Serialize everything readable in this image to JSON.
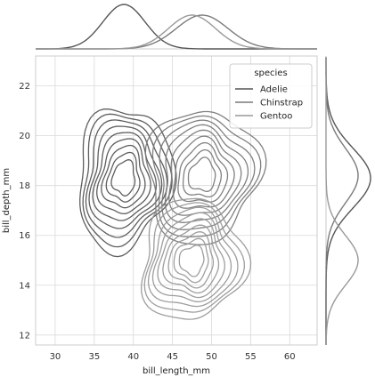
{
  "chart_data": {
    "type": "kde_joint",
    "x": {
      "label": "bill_length_mm",
      "range": [
        27.5,
        63.5
      ],
      "ticks": [
        30,
        35,
        40,
        45,
        50,
        55,
        60
      ]
    },
    "y": {
      "label": "bill_depth_mm",
      "range": [
        11.6,
        23.2
      ],
      "ticks": [
        12,
        14,
        16,
        18,
        20,
        22
      ]
    },
    "grid": true,
    "legend": {
      "title": "species",
      "placement": "top-right",
      "entries": [
        {
          "name": "Adelie",
          "color": "#555555"
        },
        {
          "name": "Chinstrap",
          "color": "#7a7a7a"
        },
        {
          "name": "Gentoo",
          "color": "#999999"
        }
      ]
    },
    "series": [
      {
        "name": "Adelie",
        "color": "#555555",
        "center": {
          "x": 38.8,
          "y": 18.3
        },
        "spread": {
          "x": 2.7,
          "y": 1.2
        }
      },
      {
        "name": "Chinstrap",
        "color": "#7a7a7a",
        "center": {
          "x": 48.8,
          "y": 18.4
        },
        "spread": {
          "x": 3.3,
          "y": 1.1
        }
      },
      {
        "name": "Gentoo",
        "color": "#999999",
        "center": {
          "x": 47.5,
          "y": 15.0
        },
        "spread": {
          "x": 3.0,
          "y": 1.0
        }
      }
    ]
  }
}
